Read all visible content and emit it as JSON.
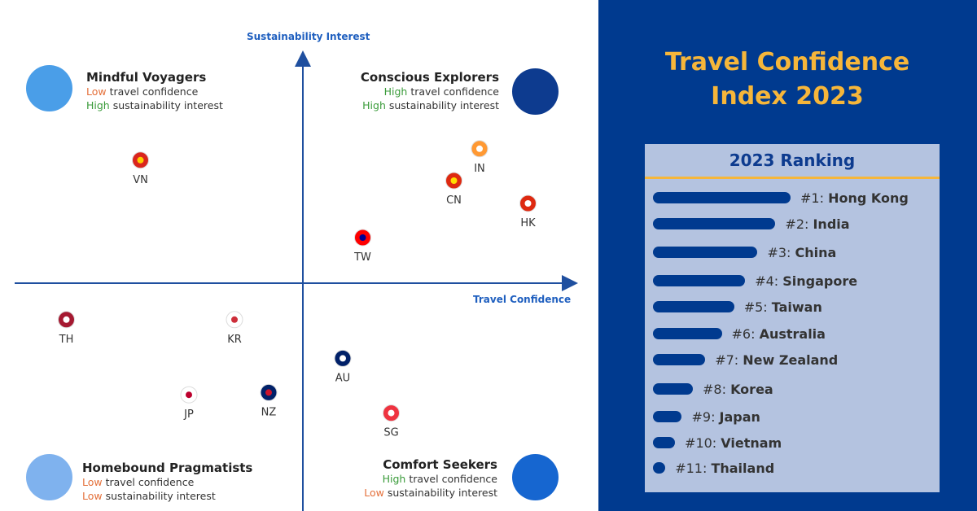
{
  "title": "Travel Confidence Index 2023",
  "ranking": {
    "heading": "2023 Ranking",
    "items": [
      {
        "rank": "#1:",
        "name": "Hong Kong",
        "bar": 1.0
      },
      {
        "rank": "#2:",
        "name": "India",
        "bar": 0.89
      },
      {
        "rank": "#3:",
        "name": "China",
        "bar": 0.76
      },
      {
        "rank": "#4:",
        "name": "Singapore",
        "bar": 0.67
      },
      {
        "rank": "#5:",
        "name": "Taiwan",
        "bar": 0.59
      },
      {
        "rank": "#6:",
        "name": "Australia",
        "bar": 0.5
      },
      {
        "rank": "#7:",
        "name": "New Zealand",
        "bar": 0.38
      },
      {
        "rank": "#8:",
        "name": "Korea",
        "bar": 0.29
      },
      {
        "rank": "#9:",
        "name": "Japan",
        "bar": 0.21
      },
      {
        "rank": "#10:",
        "name": "Vietnam",
        "bar": 0.16
      },
      {
        "rank": "#11:",
        "name": "Thailand",
        "bar": 0.09
      }
    ]
  },
  "quadrants": {
    "tl": {
      "title": "Mindful Voyagers",
      "l1a": "Low",
      "l1b": " travel confidence",
      "l2a": "High",
      "l2b": " sustainability interest",
      "icon": "hand-plant-icon"
    },
    "tr": {
      "title": "Conscious Explorers",
      "l1a": "High",
      "l1b": " travel confidence",
      "l2a": "High",
      "l2b": " sustainability interest",
      "icon": "suitcase-laurel-icon"
    },
    "bl": {
      "title": "Homebound Pragmatists",
      "l1a": "Low",
      "l1b": " travel confidence",
      "l2a": "Low",
      "l2b": " sustainability interest",
      "icon": "houses-icon"
    },
    "br": {
      "title": "Comfort Seekers",
      "l1a": "High",
      "l1b": " travel confidence",
      "l2a": "Low",
      "l2b": " sustainability interest",
      "icon": "spa-stones-icon"
    }
  },
  "chart_data": {
    "type": "scatter",
    "xlabel": "Travel Confidence",
    "ylabel": "Sustainability Interest",
    "points": [
      {
        "label": "VN",
        "x": -5.7,
        "y": 5.4,
        "colors": [
          "#da251d",
          "#ffcd00"
        ]
      },
      {
        "label": "IN",
        "x": 6.2,
        "y": 5.9,
        "colors": [
          "#ff9933",
          "#ffffff",
          "#138808"
        ]
      },
      {
        "label": "CN",
        "x": 5.3,
        "y": 4.5,
        "colors": [
          "#de2910",
          "#ffde00"
        ]
      },
      {
        "label": "HK",
        "x": 7.9,
        "y": 3.5,
        "colors": [
          "#de2910",
          "#ffffff"
        ]
      },
      {
        "label": "TW",
        "x": 2.1,
        "y": 2.0,
        "colors": [
          "#fe0000",
          "#000095"
        ]
      },
      {
        "label": "TH",
        "x": -8.3,
        "y": -1.6,
        "colors": [
          "#a51931",
          "#ffffff",
          "#2d2a4a"
        ]
      },
      {
        "label": "KR",
        "x": -2.4,
        "y": -1.6,
        "colors": [
          "#ffffff",
          "#cd2e3a",
          "#0047a0"
        ]
      },
      {
        "label": "AU",
        "x": 1.4,
        "y": -3.3,
        "colors": [
          "#012169",
          "#ffffff"
        ]
      },
      {
        "label": "JP",
        "x": -4.0,
        "y": -4.9,
        "colors": [
          "#ffffff",
          "#bc002d"
        ]
      },
      {
        "label": "NZ",
        "x": -1.2,
        "y": -4.8,
        "colors": [
          "#012169",
          "#cc142b"
        ]
      },
      {
        "label": "SG",
        "x": 3.1,
        "y": -5.7,
        "colors": [
          "#ef3340",
          "#ffffff"
        ]
      }
    ]
  },
  "colors": {
    "navy": "#003a8f",
    "gold": "#f6b63a",
    "axis": "#1f4f9f"
  }
}
